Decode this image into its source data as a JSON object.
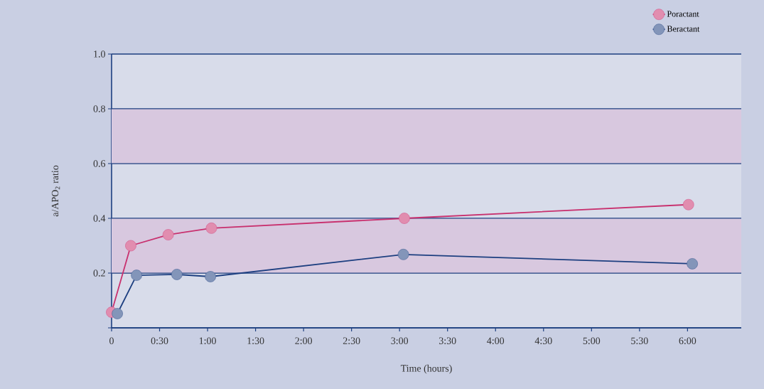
{
  "chart_data": {
    "type": "line",
    "xlabel": "Time (hours)",
    "ylabel": "a/APO$_{2}$ ratio",
    "series": [
      {
        "name": "Poractant",
        "color": "#c8306e",
        "x": [
          0,
          0.2,
          0.59,
          1.04,
          3.05,
          6.01
        ],
        "values": [
          0.057,
          0.3,
          0.34,
          0.364,
          0.4,
          0.45
        ]
      },
      {
        "name": "Beractant",
        "color": "#1d3f80",
        "x": [
          0.06,
          0.26,
          0.68,
          1.03,
          3.04,
          6.05
        ],
        "values": [
          0.052,
          0.192,
          0.195,
          0.187,
          0.268,
          0.234
        ]
      }
    ],
    "xlim": [
      0,
      6.56
    ],
    "ylim": [
      0,
      1.0
    ],
    "xticks": [
      {
        "value": 0,
        "label": "0"
      },
      {
        "value": 0.5,
        "label": "0:30"
      },
      {
        "value": 1,
        "label": "1:00"
      },
      {
        "value": 1.5,
        "label": "1:30"
      },
      {
        "value": 2,
        "label": "2:00"
      },
      {
        "value": 2.5,
        "label": "2:30"
      },
      {
        "value": 3,
        "label": "3:00"
      },
      {
        "value": 3.5,
        "label": "3:30"
      },
      {
        "value": 4,
        "label": "4:00"
      },
      {
        "value": 4.5,
        "label": "4:30"
      },
      {
        "value": 5,
        "label": "5:00"
      },
      {
        "value": 5.5,
        "label": "5:30"
      },
      {
        "value": 6,
        "label": "6:00"
      }
    ],
    "yticks": [
      {
        "value": 0,
        "label": null
      },
      0.2,
      0.4,
      0.6,
      0.8,
      {
        "value": 1.0,
        "label": "1.0"
      }
    ],
    "bands": [
      {
        "axis": "y",
        "from": 0.2,
        "to": 0.4,
        "color": "#d8c8df"
      },
      {
        "axis": "y",
        "from": 0.6,
        "to": 0.8,
        "color": "#d8c8df"
      }
    ],
    "grid": "y",
    "legend": "top right",
    "marker": "circle",
    "line_style": "solid"
  }
}
